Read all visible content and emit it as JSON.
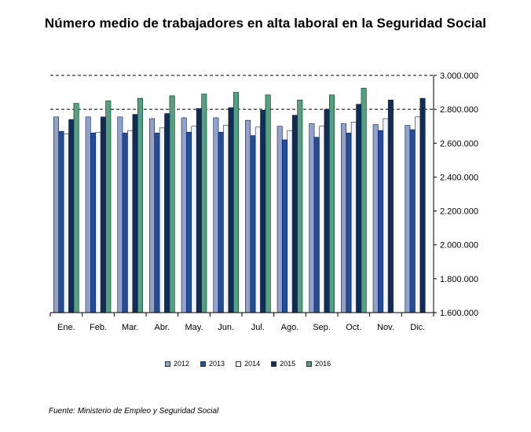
{
  "chart_data": {
    "type": "bar",
    "title": "Número medio de trabajadores en alta laboral en la Seguridad Social",
    "categories": [
      "Ene.",
      "Feb.",
      "Mar.",
      "Abr.",
      "May.",
      "Jun.",
      "Jul.",
      "Ago.",
      "Sep.",
      "Oct.",
      "Nov.",
      "Dic."
    ],
    "ylim": [
      1600000,
      3000000
    ],
    "yticks": [
      1600000,
      1800000,
      2000000,
      2200000,
      2400000,
      2600000,
      2800000,
      3000000
    ],
    "ytick_labels": [
      "1.600.000",
      "1.800.000",
      "2.000.000",
      "2.200.000",
      "2.400.000",
      "2.600.000",
      "2.800.000",
      "3.000.000"
    ],
    "grid": "dashed horizontal lines at 2.800.000 and 3.000.000",
    "legend_position": "bottom",
    "series": [
      {
        "name": "2012",
        "color": "#8ea0d4",
        "values": [
          2755000,
          2755000,
          2755000,
          2745000,
          2750000,
          2750000,
          2735000,
          2700000,
          2715000,
          2715000,
          2710000,
          2705000
        ]
      },
      {
        "name": "2013",
        "color": "#1f4e9c",
        "values": [
          2670000,
          2660000,
          2660000,
          2660000,
          2665000,
          2665000,
          2645000,
          2620000,
          2635000,
          2660000,
          2675000,
          2680000
        ]
      },
      {
        "name": "2014",
        "color": "#f3f3ff",
        "values": [
          2655000,
          2665000,
          2675000,
          2690000,
          2700000,
          2705000,
          2695000,
          2675000,
          2700000,
          2725000,
          2745000,
          2755000
        ]
      },
      {
        "name": "2015",
        "color": "#0d2d5a",
        "values": [
          2740000,
          2755000,
          2770000,
          2775000,
          2805000,
          2810000,
          2795000,
          2765000,
          2800000,
          2830000,
          2855000,
          2865000
        ]
      },
      {
        "name": "2016",
        "color": "#4fa37f",
        "values": [
          2835000,
          2850000,
          2865000,
          2880000,
          2890000,
          2900000,
          2885000,
          2855000,
          2885000,
          2925000,
          null,
          null
        ]
      }
    ]
  },
  "source": "Fuente: Ministerio de Empleo y Seguridad Social"
}
